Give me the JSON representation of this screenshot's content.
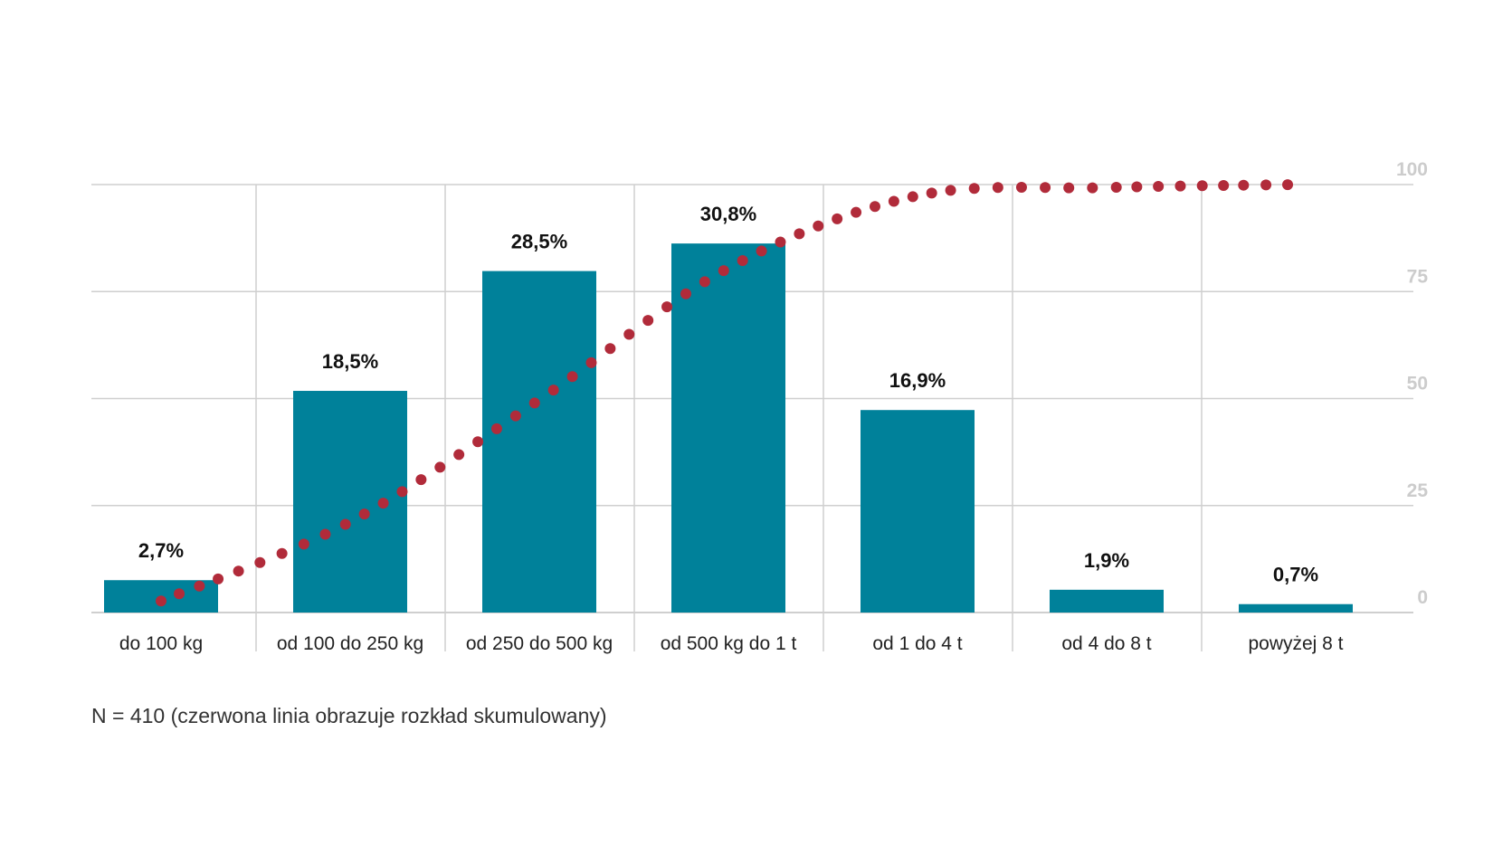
{
  "chart_data": {
    "type": "bar",
    "categories": [
      "do 100 kg",
      "od 100 do 250 kg",
      "od 250 do 500 kg",
      "od 500 kg do 1 t",
      "od 1 do 4 t",
      "od 4 do 8 t",
      "powyżej 8 t"
    ],
    "series": [
      {
        "values": [
          2.7,
          18.5,
          28.5,
          30.8,
          16.9,
          1.9,
          0.7
        ],
        "value_labels": [
          "2,7%",
          "18,5%",
          "28,5%",
          "30,8%",
          "16,9%",
          "1,9%",
          "0,7%"
        ],
        "color": "#00819a"
      }
    ],
    "cumulative": {
      "values": [
        2.7,
        21.2,
        49.7,
        80.5,
        97.4,
        99.3,
        100.0
      ],
      "color": "#b12b3a",
      "style": "dotted"
    },
    "yticks": [
      0,
      25,
      50,
      75,
      100
    ],
    "ylim": [
      0,
      100
    ],
    "left_axis_max": 33,
    "grid": true,
    "note": "N = 410 (czerwona linia obrazuje rozkład skumulowany)"
  }
}
